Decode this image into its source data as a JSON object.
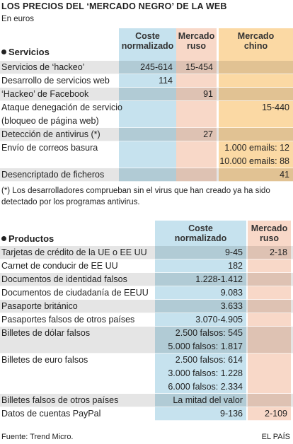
{
  "header": {
    "title": "LOS PRECIOS DEL ‘MERCADO NEGRO’ DE LA WEB",
    "subtitle": "En euros"
  },
  "sections": [
    {
      "heading": "Servicios",
      "columns": [
        [
          "Coste",
          "normalizado"
        ],
        [
          "Mercado",
          "ruso"
        ],
        [
          "Mercado",
          "chino"
        ]
      ],
      "rows": [
        {
          "label": [
            "Servicios de ‘hackeo’"
          ],
          "cells": [
            [
              "245-614"
            ],
            [
              "15-454"
            ],
            null
          ]
        },
        {
          "label": [
            "Desarrollo de servicios web"
          ],
          "cells": [
            [
              "114"
            ],
            null,
            null
          ]
        },
        {
          "label": [
            "‘Hackeo’ de Facebook"
          ],
          "cells": [
            null,
            [
              "91"
            ],
            null
          ]
        },
        {
          "label": [
            "Ataque denegación de servicio",
            "(bloqueo de página web)"
          ],
          "cells": [
            null,
            null,
            [
              "15-440"
            ]
          ]
        },
        {
          "label": [
            "Detección de antivirus (*)"
          ],
          "cells": [
            null,
            [
              "27"
            ],
            null
          ]
        },
        {
          "label": [
            "Envío de correos basura"
          ],
          "cells": [
            null,
            null,
            [
              "1.000 emails: 12",
              "10.000 emails: 88"
            ]
          ]
        },
        {
          "label": [
            "Desencriptado de ficheros"
          ],
          "cells": [
            null,
            null,
            [
              "41"
            ]
          ]
        }
      ]
    },
    {
      "heading": "Productos",
      "columns": [
        [
          "Coste",
          "normalizado"
        ],
        [
          "Mercado",
          "ruso"
        ]
      ],
      "rows": [
        {
          "label": [
            "Tarjetas de crédito de la UE o EE UU"
          ],
          "cells": [
            [
              "9-45"
            ],
            [
              "2-18"
            ]
          ]
        },
        {
          "label": [
            "Carnet de conducir de EE UU"
          ],
          "cells": [
            [
              "182"
            ],
            null
          ]
        },
        {
          "label": [
            "Documentos de identidad falsos"
          ],
          "cells": [
            [
              "1.228-1.412"
            ],
            null
          ]
        },
        {
          "label": [
            "Documentos de ciudadanía de EEUU"
          ],
          "cells": [
            [
              "9.083"
            ],
            null
          ]
        },
        {
          "label": [
            "Pasaporte británico"
          ],
          "cells": [
            [
              "3.633"
            ],
            null
          ]
        },
        {
          "label": [
            "Pasaportes falsos de otros países"
          ],
          "cells": [
            [
              "3.070-4.905"
            ],
            null
          ]
        },
        {
          "label": [
            "Billetes de dólar falsos"
          ],
          "cells": [
            [
              "2.500 falsos: 545",
              "5.000 falsos: 1.817"
            ],
            null
          ]
        },
        {
          "label": [
            "Billetes de euro falsos"
          ],
          "cells": [
            [
              "2.500 falsos: 614",
              "3.000 falsos: 1.228",
              "6.000 falsos: 2.334"
            ],
            null
          ]
        },
        {
          "label": [
            "Billetes falsos de otros países"
          ],
          "cells": [
            [
              "La mitad del valor"
            ],
            null
          ]
        },
        {
          "label": [
            "Datos de cuentas PayPal"
          ],
          "cells": [
            [
              "9-136"
            ],
            [
              "2-109"
            ]
          ]
        }
      ]
    }
  ],
  "note": "(*) Los desarrolladores comprueban sin el virus que han creado ya ha sido detectado por los programas antivirus.",
  "footer": {
    "source": "Fuente: Trend Micro.",
    "brand": "EL PAÍS"
  }
}
